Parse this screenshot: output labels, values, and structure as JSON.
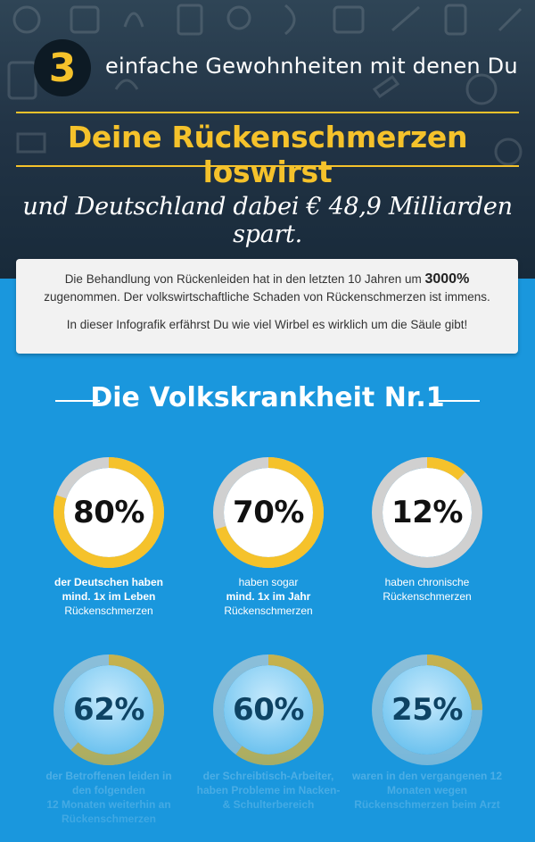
{
  "header": {
    "number": "3",
    "intro": "einfache Gewohnheiten mit denen Du",
    "headline": "Deine Rückenschmerzen loswirst",
    "subline": "und Deutschland dabei € 48,9 Milliarden spart."
  },
  "info": {
    "p1_before": "Die Behandlung von Rückenleiden hat in den letzten 10 Jahren um",
    "p1_highlight": "3000%",
    "p1_after": "zugenommen. Der volkswirtschaftliche Schaden von Rückenschmerzen ist immens.",
    "p2": "In dieser Infografik erfährst Du wie viel Wirbel es wirklich um die Säule gibt!"
  },
  "section": {
    "title": "Die Volkskrankheit Nr.1"
  },
  "colors": {
    "accent": "#f5c22b",
    "ring_track": "#d0d0d0",
    "background": "#1a97dd",
    "header_bg": "#223446"
  },
  "stats": [
    {
      "value": "80%",
      "fraction": 0.8,
      "caption_l1": "der Deutschen haben",
      "caption_l2": "mind. 1x im Leben",
      "caption_l3": "Rückenschmerzen"
    },
    {
      "value": "70%",
      "fraction": 0.7,
      "caption_l1": "haben sogar",
      "caption_l2": "mind. 1x im Jahr",
      "caption_l3": "Rückenschmerzen"
    },
    {
      "value": "12%",
      "fraction": 0.12,
      "caption_l1": "haben chronische",
      "caption_l2": "Rückenschmerzen",
      "caption_l3": ""
    },
    {
      "value": "62%",
      "fraction": 0.62,
      "caption_l1": "der Betroffenen leiden in",
      "caption_l2": "den folgenden",
      "caption_l3": "12 Monaten weiterhin an",
      "caption_l4": "Rückenschmerzen"
    },
    {
      "value": "60%",
      "fraction": 0.6,
      "caption_l1": "der Schreibtisch-Arbeiter,",
      "caption_l2": "haben Probleme im Nacken-",
      "caption_l3": "& Schulterbereich"
    },
    {
      "value": "25%",
      "fraction": 0.25,
      "caption_l1": "waren in den vergangenen 12",
      "caption_l2": "Monaten wegen",
      "caption_l3": "Rückenschmerzen beim Arzt"
    }
  ]
}
